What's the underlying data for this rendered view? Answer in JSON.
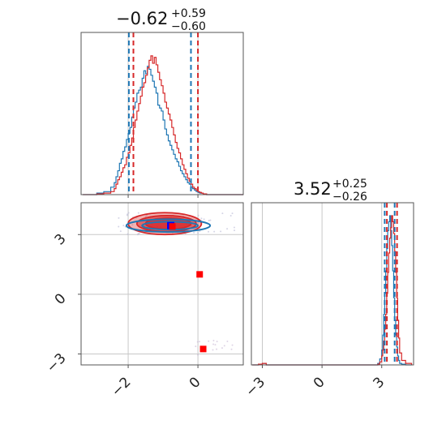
{
  "chart_data": {
    "type": "corner",
    "colors": {
      "blue": "#1f77b4",
      "red": "#d62728",
      "marker_blue": "#0000ff",
      "marker_red": "#ff0000",
      "grid": "#c8c8c8",
      "axes": "#555555"
    },
    "titles": [
      {
        "median": "−0.62",
        "upper": "+0.59",
        "lower": "−0.60"
      },
      {
        "median": "3.52",
        "upper": "+0.25",
        "lower": "−0.26"
      }
    ],
    "param1": {
      "range": [
        -3.35,
        1.3
      ],
      "ticks": [
        -2,
        0
      ],
      "tick_labels": [
        "−2",
        "0"
      ],
      "quantiles_blue": [
        -1.98,
        -0.2,
        -1.98
      ],
      "quantiles_lines_blue": [
        -1.98,
        -0.2
      ],
      "quantiles_lines_red": [
        -1.85,
        0.0
      ]
    },
    "param2": {
      "range": [
        -3.55,
        4.6
      ],
      "ticks": [
        -3,
        0,
        3
      ],
      "tick_labels": [
        "−3",
        "0",
        "3"
      ],
      "quantiles_lines_blue": [
        3.15,
        3.65
      ],
      "quantiles_lines_red": [
        3.26,
        3.77
      ]
    },
    "hist1_blue": {
      "x": [
        -3.3,
        -2.9,
        -2.7,
        -2.5,
        -2.4,
        -2.35,
        -2.3,
        -2.25,
        -2.2,
        -2.15,
        -2.1,
        -2.05,
        -2.0,
        -1.95,
        -1.9,
        -1.85,
        -1.8,
        -1.75,
        -1.7,
        -1.65,
        -1.6,
        -1.55,
        -1.5,
        -1.45,
        -1.4,
        -1.35,
        -1.3,
        -1.25,
        -1.2,
        -1.15,
        -1.1,
        -1.05,
        -1.0,
        -0.95,
        -0.9,
        -0.85,
        -0.8,
        -0.75,
        -0.7,
        -0.65,
        -0.6,
        -0.55,
        -0.5,
        -0.45,
        -0.4,
        -0.35,
        -0.3,
        -0.25,
        -0.2,
        -0.15,
        -0.1,
        -0.05,
        0.0,
        0.05,
        0.1,
        0.15,
        0.2,
        0.25,
        0.3,
        0.35,
        0.4,
        0.45,
        0.5,
        0.6,
        0.8,
        1.0,
        1.3
      ],
      "y": [
        0,
        0.01,
        0.02,
        0.05,
        0.08,
        0.12,
        0.16,
        0.21,
        0.24,
        0.29,
        0.32,
        0.37,
        0.41,
        0.45,
        0.52,
        0.58,
        0.62,
        0.68,
        0.7,
        0.72,
        0.78,
        0.83,
        0.81,
        0.86,
        0.84,
        0.8,
        0.76,
        0.72,
        0.68,
        0.6,
        0.58,
        0.56,
        0.5,
        0.44,
        0.4,
        0.36,
        0.33,
        0.3,
        0.27,
        0.24,
        0.22,
        0.19,
        0.16,
        0.14,
        0.12,
        0.1,
        0.08,
        0.07,
        0.05,
        0.04,
        0.03,
        0.02,
        0.015,
        0.01,
        0.01,
        0.005,
        0.005,
        0.0,
        0.0,
        0.0,
        0.0,
        0.0,
        0.0,
        0.0,
        0.0,
        0.0,
        0.0
      ]
    },
    "hist1_red": {
      "x": [
        -3.3,
        -2.9,
        -2.7,
        -2.5,
        -2.4,
        -2.35,
        -2.3,
        -2.25,
        -2.2,
        -2.15,
        -2.1,
        -2.05,
        -2.0,
        -1.95,
        -1.9,
        -1.85,
        -1.8,
        -1.75,
        -1.7,
        -1.65,
        -1.6,
        -1.55,
        -1.5,
        -1.45,
        -1.4,
        -1.35,
        -1.3,
        -1.25,
        -1.2,
        -1.15,
        -1.1,
        -1.05,
        -1.0,
        -0.95,
        -0.9,
        -0.85,
        -0.8,
        -0.75,
        -0.7,
        -0.65,
        -0.6,
        -0.55,
        -0.5,
        -0.45,
        -0.4,
        -0.35,
        -0.3,
        -0.25,
        -0.2,
        -0.15,
        -0.1,
        -0.05,
        0.0,
        0.05,
        0.1,
        0.15,
        0.2,
        0.25,
        0.3,
        0.35,
        0.4,
        0.45,
        0.5,
        0.6,
        0.8,
        1.0,
        1.3
      ],
      "y": [
        0,
        0.005,
        0.01,
        0.02,
        0.04,
        0.07,
        0.1,
        0.12,
        0.15,
        0.18,
        0.2,
        0.25,
        0.28,
        0.33,
        0.38,
        0.45,
        0.5,
        0.56,
        0.61,
        0.66,
        0.72,
        0.75,
        0.8,
        0.85,
        0.9,
        0.93,
        0.88,
        0.92,
        0.87,
        0.82,
        0.77,
        0.73,
        0.68,
        0.62,
        0.58,
        0.54,
        0.5,
        0.45,
        0.4,
        0.35,
        0.31,
        0.28,
        0.24,
        0.2,
        0.17,
        0.14,
        0.11,
        0.09,
        0.07,
        0.05,
        0.04,
        0.03,
        0.02,
        0.015,
        0.01,
        0.005,
        0.005,
        0.0,
        0.0,
        0.0,
        0.0,
        0.0,
        0.0,
        0.0,
        0.0,
        0.0,
        0.0
      ]
    },
    "hist2_blue": {
      "x": [
        -3.5,
        -3.2,
        -3.0,
        -2.8,
        2.6,
        2.8,
        2.9,
        3.0,
        3.05,
        3.1,
        3.15,
        3.2,
        3.25,
        3.3,
        3.35,
        3.4,
        3.45,
        3.5,
        3.55,
        3.6,
        3.65,
        3.7,
        3.75,
        3.8,
        3.85,
        3.9,
        4.0,
        4.2,
        4.5
      ],
      "y": [
        0,
        0.005,
        0.01,
        0.0,
        0.0,
        0.01,
        0.04,
        0.1,
        0.2,
        0.34,
        0.48,
        0.63,
        0.78,
        0.9,
        0.96,
        1.0,
        0.9,
        0.8,
        0.63,
        0.45,
        0.3,
        0.2,
        0.12,
        0.06,
        0.03,
        0.01,
        0.005,
        0.0,
        0.0
      ]
    },
    "hist2_red": {
      "x": [
        -3.5,
        -3.2,
        -3.0,
        -2.8,
        2.6,
        2.8,
        2.9,
        3.0,
        3.05,
        3.1,
        3.15,
        3.2,
        3.25,
        3.3,
        3.35,
        3.4,
        3.45,
        3.5,
        3.55,
        3.6,
        3.65,
        3.7,
        3.75,
        3.8,
        3.85,
        3.9,
        4.0,
        4.2,
        4.5
      ],
      "y": [
        0,
        0.005,
        0.01,
        0.0,
        0.0,
        0.005,
        0.02,
        0.06,
        0.1,
        0.16,
        0.24,
        0.34,
        0.48,
        0.62,
        0.75,
        0.85,
        0.92,
        1.0,
        0.96,
        0.88,
        0.76,
        0.62,
        0.45,
        0.3,
        0.18,
        0.08,
        0.03,
        0.01,
        0.0
      ]
    },
    "contours_red": [
      {
        "cx": -0.95,
        "cy": 3.55,
        "rx": 1.05,
        "ry": 0.55,
        "opacity": 0.35
      },
      {
        "cx": -0.9,
        "cy": 3.55,
        "rx": 0.85,
        "ry": 0.4,
        "opacity": 0.55
      },
      {
        "cx": -0.85,
        "cy": 3.55,
        "rx": 0.65,
        "ry": 0.28,
        "opacity": 0.75
      }
    ],
    "contours_blue": [
      {
        "cx": -0.85,
        "cy": 3.45,
        "rx": 1.2,
        "ry": 0.32
      },
      {
        "cx": -0.8,
        "cy": 3.45,
        "rx": 0.8,
        "ry": 0.2
      }
    ],
    "markers": [
      {
        "x": -0.78,
        "y": 3.45,
        "color": "marker_blue"
      },
      {
        "x": -0.78,
        "y": 3.45,
        "color": "marker_red"
      },
      {
        "x": 0.05,
        "y": 1.0,
        "color": "marker_red"
      },
      {
        "x": 0.15,
        "y": -2.75,
        "color": "marker_red"
      }
    ],
    "grid": true
  }
}
